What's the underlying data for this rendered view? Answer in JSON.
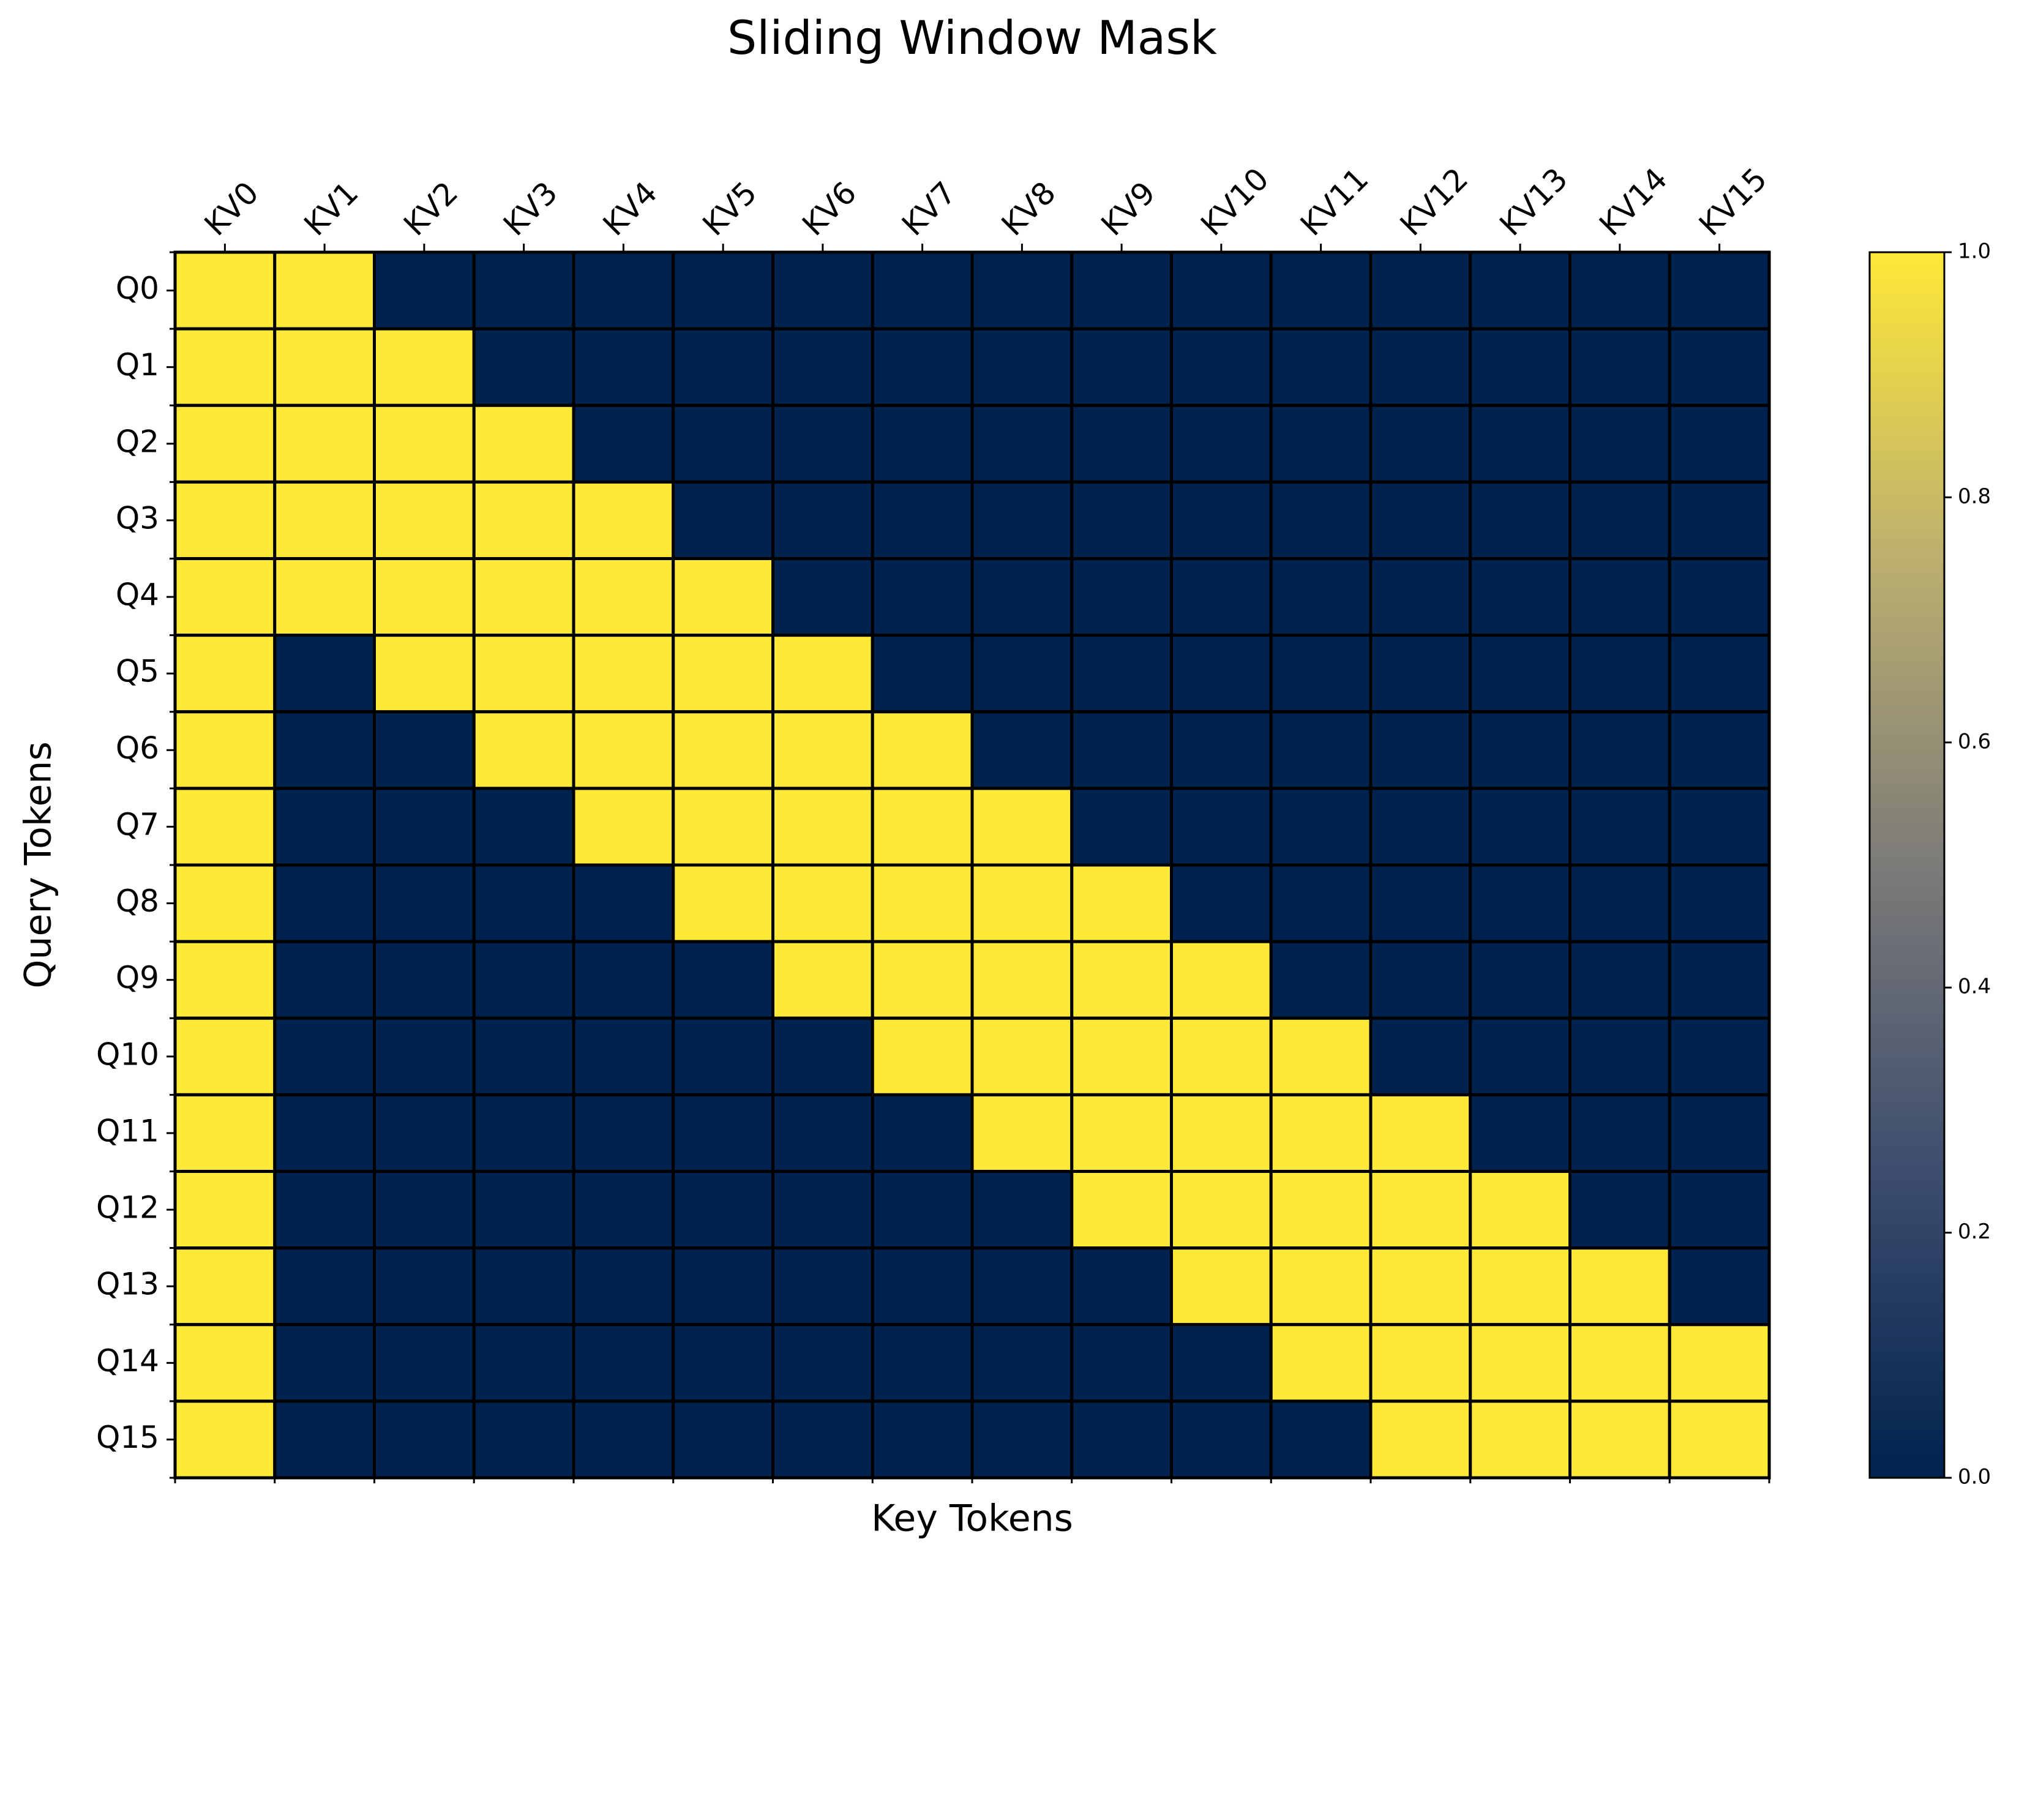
{
  "chart_data": {
    "type": "heatmap",
    "title": "Sliding Window Mask",
    "x_label": "Key Tokens",
    "y_label": "Query Tokens",
    "x_categories": [
      "KV0",
      "KV1",
      "KV2",
      "KV3",
      "KV4",
      "KV5",
      "KV6",
      "KV7",
      "KV8",
      "KV9",
      "KV10",
      "KV11",
      "KV12",
      "KV13",
      "KV14",
      "KV15"
    ],
    "y_categories": [
      "Q0",
      "Q1",
      "Q2",
      "Q3",
      "Q4",
      "Q5",
      "Q6",
      "Q7",
      "Q8",
      "Q9",
      "Q10",
      "Q11",
      "Q12",
      "Q13",
      "Q14",
      "Q15"
    ],
    "values": [
      [
        1,
        1,
        0,
        0,
        0,
        0,
        0,
        0,
        0,
        0,
        0,
        0,
        0,
        0,
        0,
        0
      ],
      [
        1,
        1,
        1,
        0,
        0,
        0,
        0,
        0,
        0,
        0,
        0,
        0,
        0,
        0,
        0,
        0
      ],
      [
        1,
        1,
        1,
        1,
        0,
        0,
        0,
        0,
        0,
        0,
        0,
        0,
        0,
        0,
        0,
        0
      ],
      [
        1,
        1,
        1,
        1,
        1,
        0,
        0,
        0,
        0,
        0,
        0,
        0,
        0,
        0,
        0,
        0
      ],
      [
        1,
        1,
        1,
        1,
        1,
        1,
        0,
        0,
        0,
        0,
        0,
        0,
        0,
        0,
        0,
        0
      ],
      [
        1,
        0,
        1,
        1,
        1,
        1,
        1,
        0,
        0,
        0,
        0,
        0,
        0,
        0,
        0,
        0
      ],
      [
        1,
        0,
        0,
        1,
        1,
        1,
        1,
        1,
        0,
        0,
        0,
        0,
        0,
        0,
        0,
        0
      ],
      [
        1,
        0,
        0,
        0,
        1,
        1,
        1,
        1,
        1,
        0,
        0,
        0,
        0,
        0,
        0,
        0
      ],
      [
        1,
        0,
        0,
        0,
        0,
        1,
        1,
        1,
        1,
        1,
        0,
        0,
        0,
        0,
        0,
        0
      ],
      [
        1,
        0,
        0,
        0,
        0,
        0,
        1,
        1,
        1,
        1,
        1,
        0,
        0,
        0,
        0,
        0
      ],
      [
        1,
        0,
        0,
        0,
        0,
        0,
        0,
        1,
        1,
        1,
        1,
        1,
        0,
        0,
        0,
        0
      ],
      [
        1,
        0,
        0,
        0,
        0,
        0,
        0,
        0,
        1,
        1,
        1,
        1,
        1,
        0,
        0,
        0
      ],
      [
        1,
        0,
        0,
        0,
        0,
        0,
        0,
        0,
        0,
        1,
        1,
        1,
        1,
        1,
        0,
        0
      ],
      [
        1,
        0,
        0,
        0,
        0,
        0,
        0,
        0,
        0,
        0,
        1,
        1,
        1,
        1,
        1,
        0
      ],
      [
        1,
        0,
        0,
        0,
        0,
        0,
        0,
        0,
        0,
        0,
        0,
        1,
        1,
        1,
        1,
        1
      ],
      [
        1,
        0,
        0,
        0,
        0,
        0,
        0,
        0,
        0,
        0,
        0,
        0,
        1,
        1,
        1,
        1
      ]
    ],
    "colormap": "cividis",
    "clim": [
      0,
      1
    ],
    "cticks": [
      {
        "value": 0,
        "label": "0.0"
      },
      {
        "value": 0.2,
        "label": "0.2"
      },
      {
        "value": 0.4,
        "label": "0.4"
      },
      {
        "value": 0.6,
        "label": "0.6"
      },
      {
        "value": 0.8,
        "label": "0.8"
      },
      {
        "value": 1,
        "label": "1.0"
      }
    ]
  }
}
